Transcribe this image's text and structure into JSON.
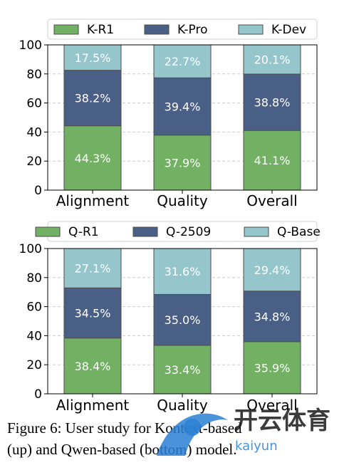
{
  "caption": "Figure 6:  User study for Kontext-based\n(up) and Qwen-based (bottom) model.",
  "watermark": {
    "brand": "开云体育",
    "sub": "kaiyun"
  },
  "colors": {
    "r1": "#72b063",
    "pro": "#4a5f85",
    "dev": "#94c6cc",
    "border": "#4d4d4d",
    "grid": "#cccccc"
  },
  "chart_data": [
    {
      "type": "bar",
      "stacked": true,
      "categories": [
        "Alignment",
        "Quality",
        "Overall"
      ],
      "ylim": [
        0,
        100
      ],
      "yticks": [
        0,
        20,
        40,
        60,
        80,
        100
      ],
      "grid": true,
      "legend_position": "top",
      "series": [
        {
          "name": "K-R1",
          "values": [
            44.3,
            37.9,
            41.1
          ],
          "labels": [
            "44.3%",
            "37.9%",
            "41.1%"
          ]
        },
        {
          "name": "K-Pro",
          "values": [
            38.2,
            39.4,
            38.8
          ],
          "labels": [
            "38.2%",
            "39.4%",
            "38.8%"
          ]
        },
        {
          "name": "K-Dev",
          "values": [
            17.5,
            22.7,
            20.1
          ],
          "labels": [
            "17.5%",
            "22.7%",
            "20.1%"
          ]
        }
      ]
    },
    {
      "type": "bar",
      "stacked": true,
      "categories": [
        "Alignment",
        "Quality",
        "Overall"
      ],
      "ylim": [
        0,
        100
      ],
      "yticks": [
        0,
        20,
        40,
        60,
        80,
        100
      ],
      "grid": true,
      "legend_position": "top",
      "series": [
        {
          "name": "Q-R1",
          "values": [
            38.4,
            33.4,
            35.9
          ],
          "labels": [
            "38.4%",
            "33.4%",
            "35.9%"
          ]
        },
        {
          "name": "Q-2509",
          "values": [
            34.5,
            35.0,
            34.8
          ],
          "labels": [
            "34.5%",
            "35.0%",
            "34.8%"
          ]
        },
        {
          "name": "Q-Base",
          "values": [
            27.1,
            31.6,
            29.4
          ],
          "labels": [
            "27.1%",
            "31.6%",
            "29.4%"
          ]
        }
      ]
    }
  ]
}
